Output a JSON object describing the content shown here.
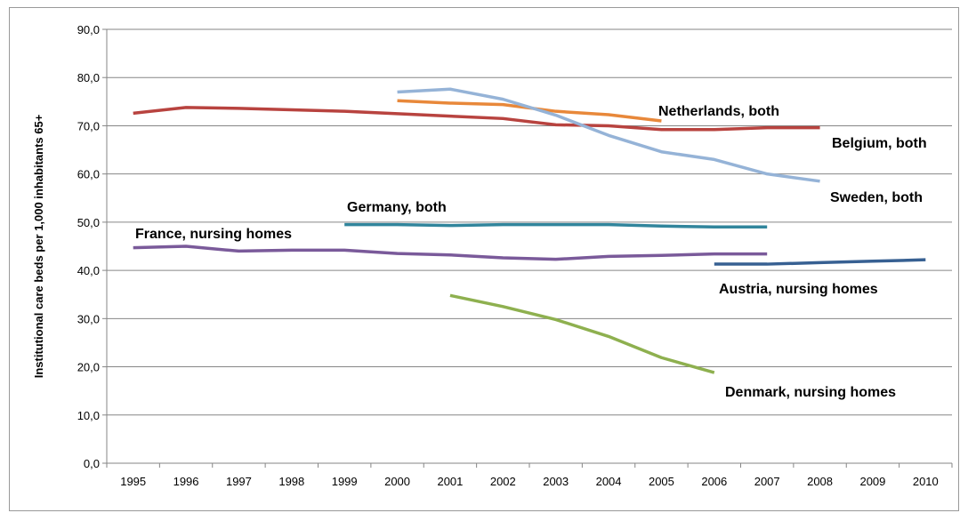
{
  "chart_data": {
    "type": "line",
    "y_label": "Institutional care beds per 1,000 inhabitants 65+",
    "categories": [
      "1995",
      "1996",
      "1997",
      "1998",
      "1999",
      "2000",
      "2001",
      "2002",
      "2003",
      "2004",
      "2005",
      "2006",
      "2007",
      "2008",
      "2009",
      "2010"
    ],
    "ylim": [
      0,
      90
    ],
    "yticks": [
      {
        "value": 0,
        "label": "0,0"
      },
      {
        "value": 10,
        "label": "10,0"
      },
      {
        "value": 20,
        "label": "20,0"
      },
      {
        "value": 30,
        "label": "30,0"
      },
      {
        "value": 40,
        "label": "40,0"
      },
      {
        "value": 50,
        "label": "50,0"
      },
      {
        "value": 60,
        "label": "60,0"
      },
      {
        "value": 70,
        "label": "70,0"
      },
      {
        "value": 80,
        "label": "80,0"
      },
      {
        "value": 90,
        "label": "90,0"
      }
    ],
    "grid": true,
    "series": [
      {
        "name": "Netherlands, both",
        "color": "#e8883a",
        "values": [
          null,
          null,
          null,
          null,
          null,
          75.2,
          74.7,
          74.4,
          73.0,
          72.3,
          71.0,
          null,
          null,
          null,
          null,
          null
        ]
      },
      {
        "name": "Belgium, both",
        "color": "#b8433f",
        "values": [
          72.6,
          73.8,
          73.6,
          73.3,
          73.0,
          72.5,
          72.0,
          71.5,
          70.2,
          70.0,
          69.2,
          69.2,
          69.6,
          69.6,
          null,
          null
        ]
      },
      {
        "name": "Sweden, both",
        "color": "#95b3d7",
        "values": [
          null,
          null,
          null,
          null,
          null,
          77.0,
          77.6,
          75.5,
          72.2,
          68.0,
          64.6,
          63.0,
          60.0,
          58.5,
          null,
          null
        ]
      },
      {
        "name": "Germany, both",
        "color": "#31859c",
        "values": [
          null,
          null,
          null,
          null,
          49.5,
          49.5,
          49.3,
          49.5,
          49.5,
          49.5,
          49.2,
          49.0,
          49.0,
          null,
          null,
          null
        ]
      },
      {
        "name": "France, nursing homes",
        "color": "#7a5a9a",
        "values": [
          44.7,
          45.0,
          44.0,
          44.2,
          44.2,
          43.5,
          43.2,
          42.6,
          42.3,
          42.9,
          43.1,
          43.4,
          43.4,
          null,
          null,
          null
        ]
      },
      {
        "name": "Austria, nursing homes",
        "color": "#376092",
        "values": [
          null,
          null,
          null,
          null,
          null,
          null,
          null,
          null,
          null,
          null,
          null,
          41.3,
          41.3,
          41.6,
          41.9,
          42.2
        ]
      },
      {
        "name": "Denmark, nursing homes",
        "color": "#8eb04f",
        "values": [
          null,
          null,
          null,
          null,
          null,
          null,
          34.8,
          32.5,
          29.8,
          26.3,
          21.9,
          18.8,
          null,
          null,
          null,
          null
        ]
      }
    ]
  }
}
